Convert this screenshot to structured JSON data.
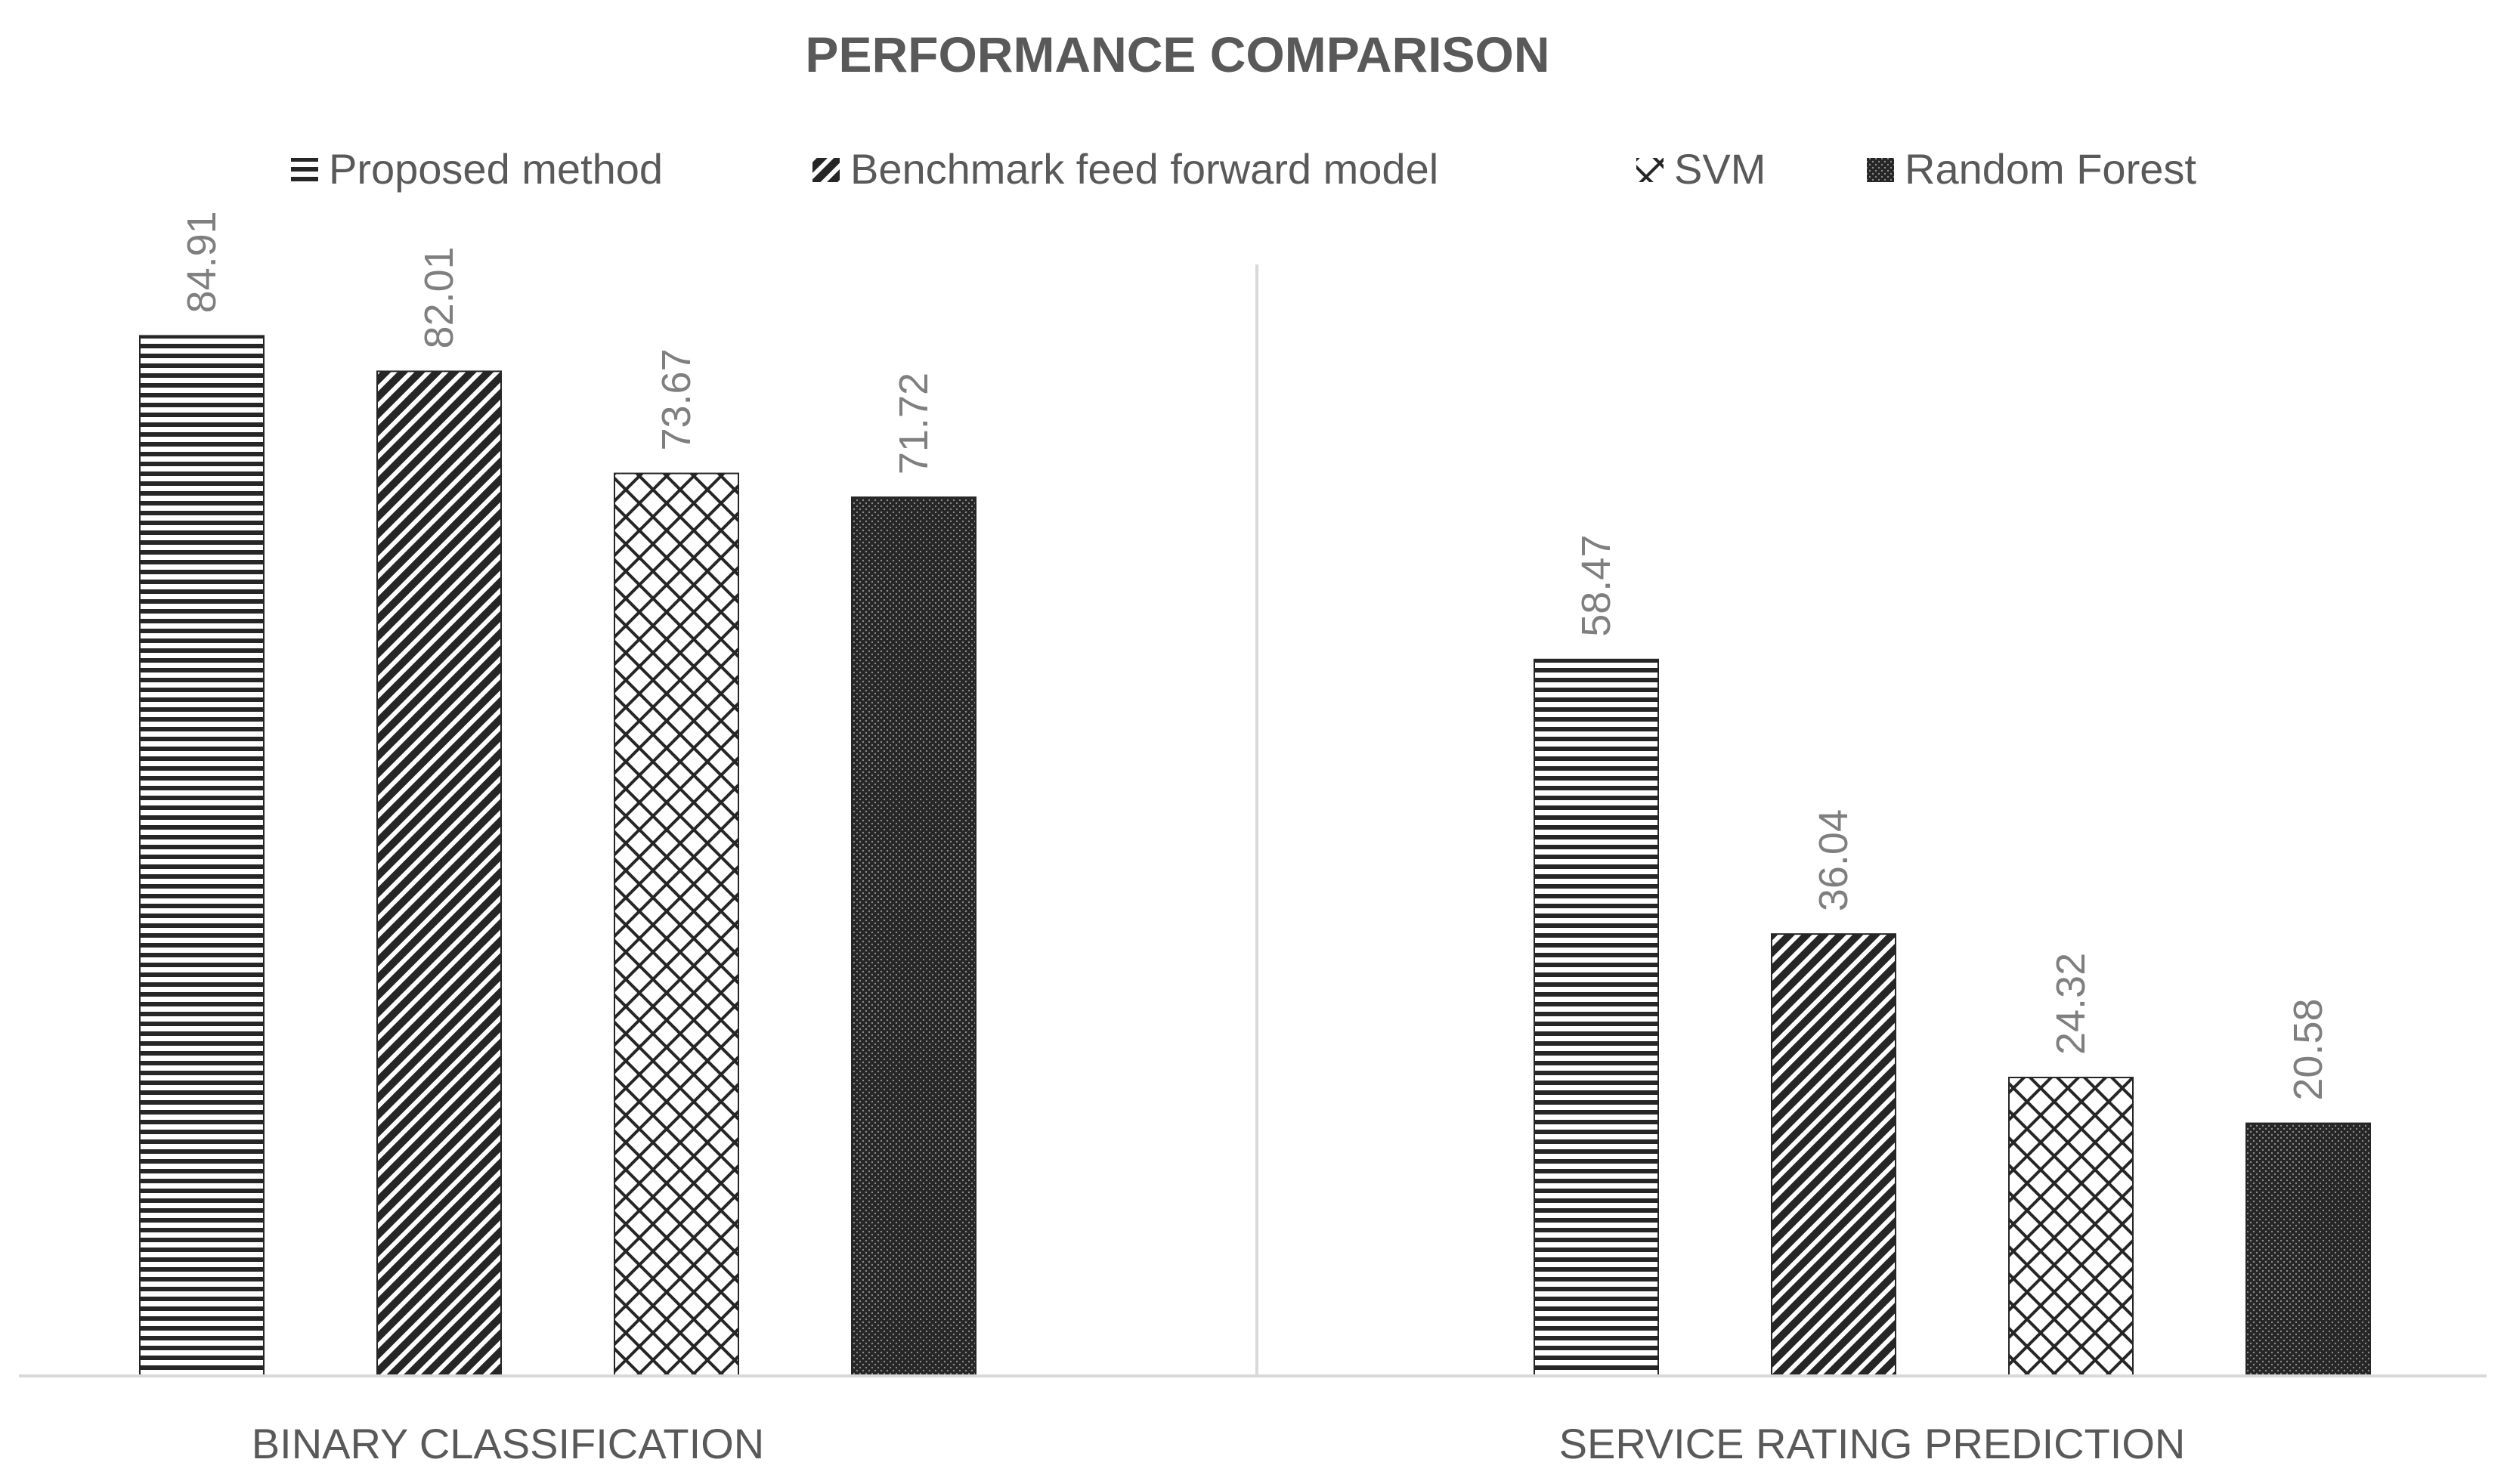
{
  "chart_data": {
    "type": "bar",
    "title": "PERFORMANCE COMPARISON",
    "categories": [
      "BINARY CLASSIFICATION",
      "SERVICE RATING PREDICTION"
    ],
    "series": [
      {
        "name": "Proposed method",
        "pattern": "horizontal-lines",
        "values": [
          84.91,
          58.47
        ]
      },
      {
        "name": "Benchmark feed forward model",
        "pattern": "diagonal-lines",
        "values": [
          82.01,
          36.04
        ]
      },
      {
        "name": "SVM",
        "pattern": "zigzag",
        "values": [
          73.67,
          24.32
        ]
      },
      {
        "name": "Random Forest",
        "pattern": "dense-dots",
        "values": [
          71.72,
          20.58
        ]
      }
    ],
    "value_labels": [
      [
        "84.91",
        "58.47"
      ],
      [
        "82.01",
        "36.04"
      ],
      [
        "73.67",
        "24.32"
      ],
      [
        "71.72",
        "20.58"
      ]
    ],
    "ylim": [
      0,
      100
    ],
    "xlabel": "",
    "ylabel": "",
    "legend_position": "top",
    "grid": false,
    "colors": {
      "text": "#595959",
      "value_text": "#7f7f7f",
      "bar": "#262626",
      "axis": "#d9d9d9"
    }
  }
}
